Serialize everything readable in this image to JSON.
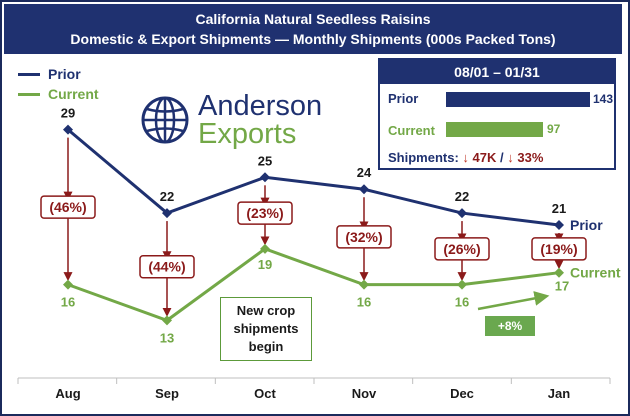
{
  "chart_data": {
    "type": "line",
    "title": "California Natural Seedless Raisins",
    "subtitle": "Domestic & Export Shipments — Monthly Shipments (000s Packed Tons)",
    "categories": [
      "Aug",
      "Sep",
      "Oct",
      "Nov",
      "Dec",
      "Jan"
    ],
    "series": [
      {
        "name": "Prior",
        "values": [
          29,
          22,
          25,
          24,
          22,
          21
        ],
        "color": "#1f3170"
      },
      {
        "name": "Current",
        "values": [
          16,
          13,
          19,
          16,
          16,
          17
        ],
        "color": "#73a847"
      }
    ],
    "pct_change_labels": [
      "(46%)",
      "(44%)",
      "(23%)",
      "(32%)",
      "(26%)",
      "(19%)"
    ],
    "ylim": [
      8,
      34
    ],
    "grid": false,
    "legend_position": "top-left",
    "end_labels": {
      "prior": "Prior",
      "current": "Current"
    },
    "annotations": {
      "new_crop": [
        "New crop",
        "shipments",
        "begin"
      ],
      "dec_jan_change": "+8%"
    }
  },
  "summary_box": {
    "period": "08/01 – 01/31",
    "prior_label": "Prior",
    "prior_value": 143,
    "current_label": "Current",
    "current_value": 97,
    "shipments_label": "Shipments:",
    "change_abs": "47K",
    "separator": "/",
    "change_pct": "33%"
  },
  "logo": {
    "line1": "Anderson",
    "line2": "Exports"
  },
  "colors": {
    "navy": "#1f3170",
    "green": "#73a847",
    "red": "#8b1a1a",
    "callout_green": "#6aa84f"
  }
}
